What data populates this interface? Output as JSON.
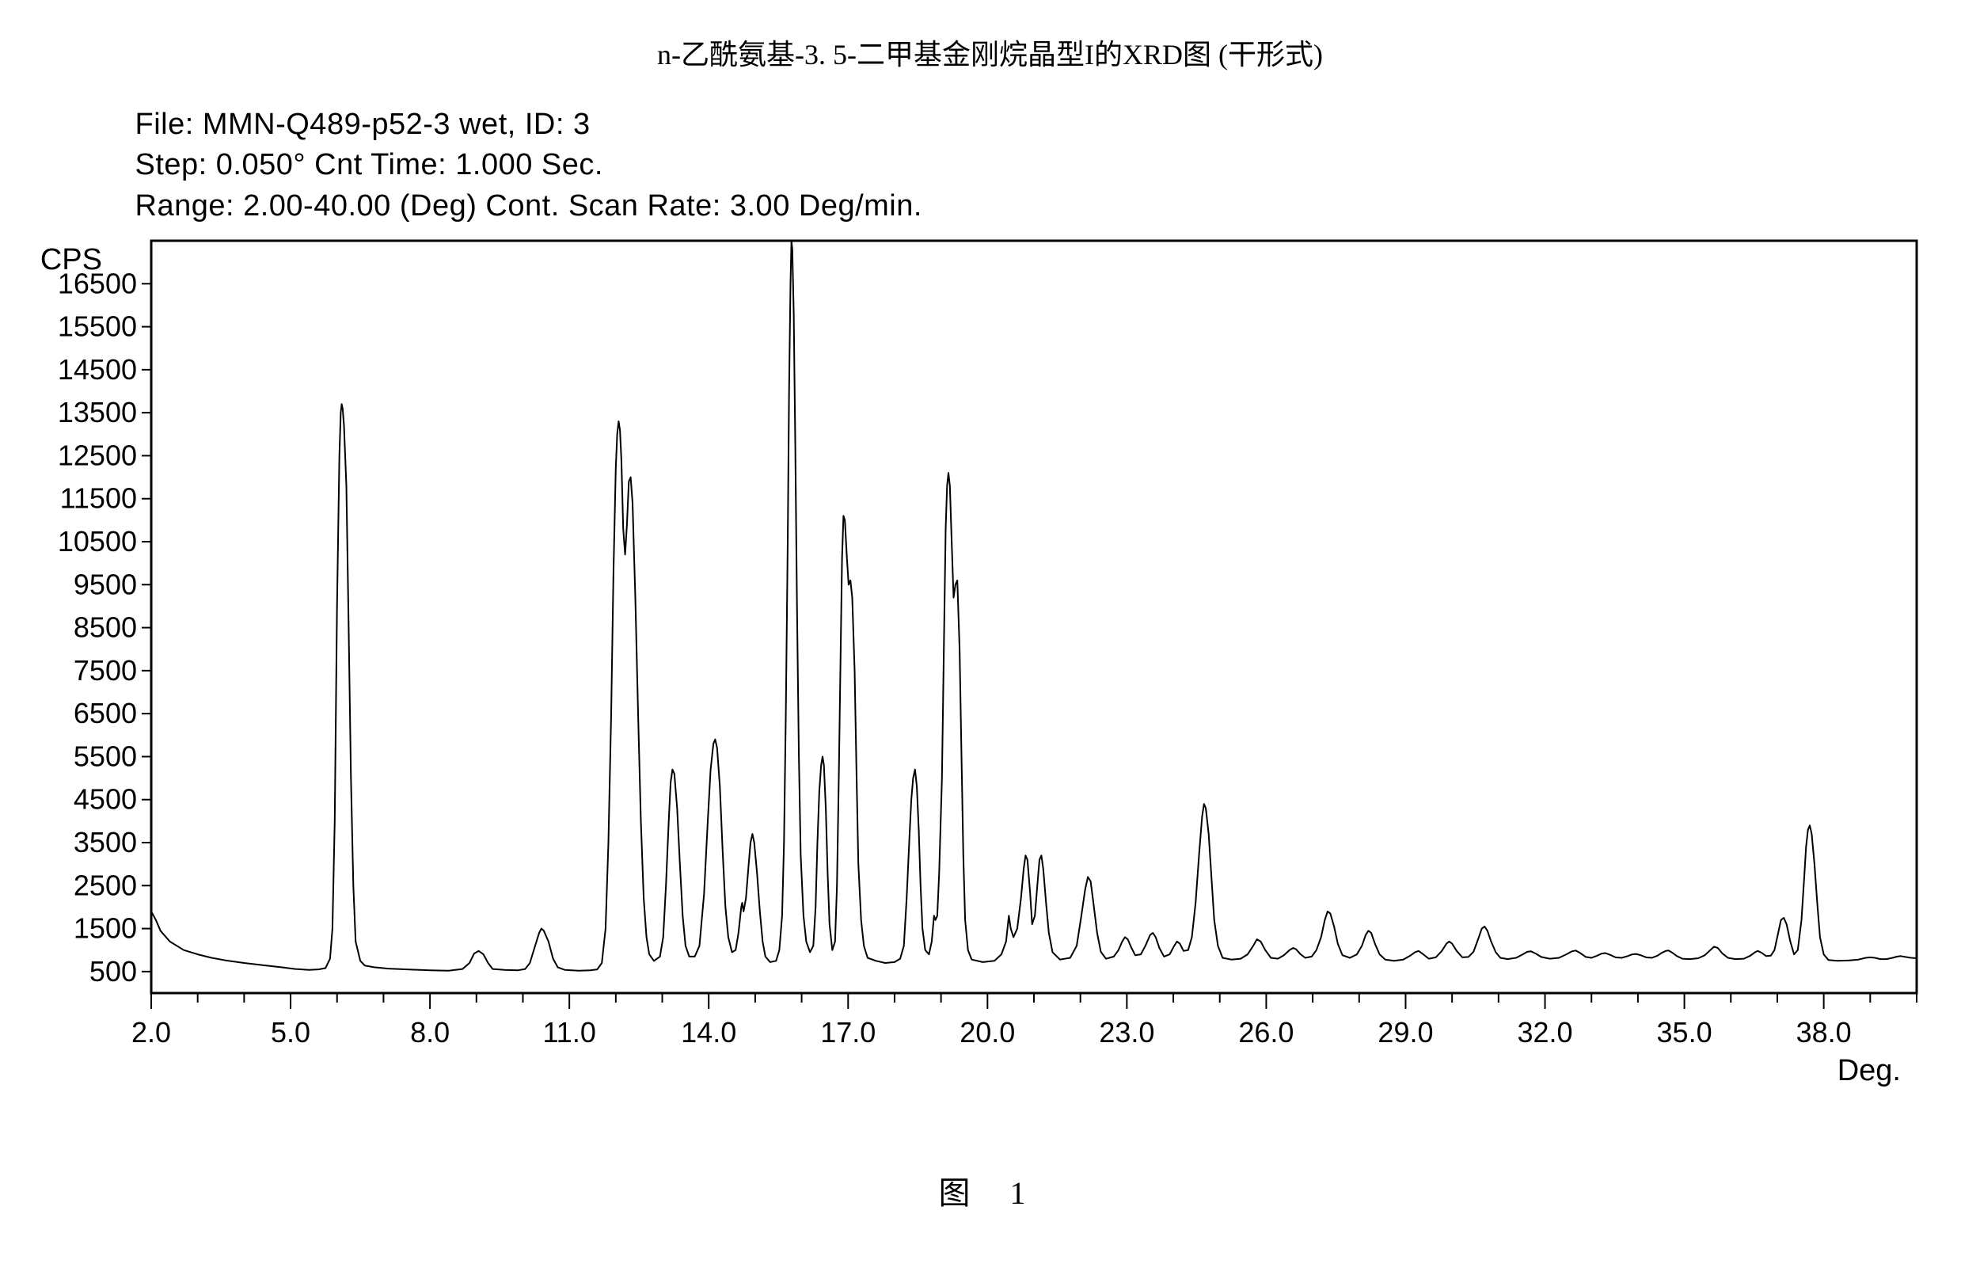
{
  "title_cn": "n-乙酰氨基-3. 5-二甲基金刚烷晶型I的XRD图 (干形式)",
  "header": {
    "line1": "File: MMN-Q489-p52-3 wet, ID: 3",
    "line2": "Step: 0.050° Cnt Time: 1.000 Sec.",
    "line3": "Range: 2.00-40.00 (Deg) Cont. Scan Rate: 3.00 Deg/min."
  },
  "chart": {
    "type": "line",
    "xlabel": "Deg.",
    "ylabel": "CPS",
    "xlim": [
      2.0,
      40.0
    ],
    "ylim": [
      0,
      17500
    ],
    "xticks": [
      2.0,
      5.0,
      8.0,
      11.0,
      14.0,
      17.0,
      20.0,
      23.0,
      26.0,
      29.0,
      32.0,
      35.0,
      38.0
    ],
    "xtick_minor_step": 1.0,
    "yticks": [
      500,
      1500,
      2500,
      3500,
      4500,
      5500,
      6500,
      7500,
      8500,
      9500,
      10500,
      11500,
      12500,
      13500,
      14500,
      15500,
      16500
    ],
    "line_color": "#000000",
    "background_color": "#ffffff",
    "border_color": "#000000",
    "line_width": 2,
    "border_width": 3,
    "label_fontsize": 36,
    "axis_fontsize": 38,
    "data": [
      [
        2.0,
        1900
      ],
      [
        2.1,
        1700
      ],
      [
        2.2,
        1450
      ],
      [
        2.4,
        1200
      ],
      [
        2.7,
        1000
      ],
      [
        3.0,
        900
      ],
      [
        3.3,
        820
      ],
      [
        3.6,
        760
      ],
      [
        4.0,
        700
      ],
      [
        4.4,
        650
      ],
      [
        4.8,
        600
      ],
      [
        5.1,
        560
      ],
      [
        5.4,
        540
      ],
      [
        5.6,
        550
      ],
      [
        5.75,
        580
      ],
      [
        5.85,
        800
      ],
      [
        5.9,
        1500
      ],
      [
        5.95,
        4000
      ],
      [
        6.0,
        9000
      ],
      [
        6.05,
        12500
      ],
      [
        6.08,
        13500
      ],
      [
        6.1,
        13700
      ],
      [
        6.12,
        13600
      ],
      [
        6.15,
        13200
      ],
      [
        6.2,
        11800
      ],
      [
        6.25,
        8500
      ],
      [
        6.3,
        5000
      ],
      [
        6.35,
        2500
      ],
      [
        6.4,
        1200
      ],
      [
        6.5,
        750
      ],
      [
        6.6,
        640
      ],
      [
        6.8,
        600
      ],
      [
        7.1,
        570
      ],
      [
        7.5,
        550
      ],
      [
        8.0,
        530
      ],
      [
        8.4,
        520
      ],
      [
        8.7,
        560
      ],
      [
        8.85,
        700
      ],
      [
        8.95,
        920
      ],
      [
        9.05,
        980
      ],
      [
        9.15,
        900
      ],
      [
        9.25,
        700
      ],
      [
        9.35,
        560
      ],
      [
        9.6,
        540
      ],
      [
        9.9,
        530
      ],
      [
        10.05,
        560
      ],
      [
        10.15,
        700
      ],
      [
        10.25,
        1050
      ],
      [
        10.35,
        1400
      ],
      [
        10.4,
        1500
      ],
      [
        10.45,
        1450
      ],
      [
        10.55,
        1200
      ],
      [
        10.65,
        800
      ],
      [
        10.75,
        600
      ],
      [
        10.9,
        540
      ],
      [
        11.2,
        520
      ],
      [
        11.45,
        530
      ],
      [
        11.6,
        550
      ],
      [
        11.7,
        700
      ],
      [
        11.78,
        1500
      ],
      [
        11.84,
        3500
      ],
      [
        11.9,
        6500
      ],
      [
        11.95,
        9800
      ],
      [
        12.0,
        12200
      ],
      [
        12.03,
        13000
      ],
      [
        12.06,
        13300
      ],
      [
        12.09,
        13100
      ],
      [
        12.12,
        12400
      ],
      [
        12.16,
        10800
      ],
      [
        12.2,
        10200
      ],
      [
        12.24,
        10900
      ],
      [
        12.28,
        11900
      ],
      [
        12.32,
        12000
      ],
      [
        12.36,
        11400
      ],
      [
        12.42,
        9200
      ],
      [
        12.48,
        6500
      ],
      [
        12.54,
        4000
      ],
      [
        12.6,
        2200
      ],
      [
        12.66,
        1300
      ],
      [
        12.72,
        900
      ],
      [
        12.82,
        750
      ],
      [
        12.95,
        850
      ],
      [
        13.02,
        1300
      ],
      [
        13.08,
        2500
      ],
      [
        13.14,
        4000
      ],
      [
        13.18,
        4900
      ],
      [
        13.22,
        5200
      ],
      [
        13.26,
        5100
      ],
      [
        13.32,
        4300
      ],
      [
        13.38,
        3000
      ],
      [
        13.44,
        1800
      ],
      [
        13.5,
        1100
      ],
      [
        13.58,
        850
      ],
      [
        13.7,
        850
      ],
      [
        13.8,
        1100
      ],
      [
        13.9,
        2300
      ],
      [
        13.98,
        4000
      ],
      [
        14.04,
        5200
      ],
      [
        14.1,
        5800
      ],
      [
        14.14,
        5900
      ],
      [
        14.18,
        5700
      ],
      [
        14.24,
        4800
      ],
      [
        14.3,
        3300
      ],
      [
        14.36,
        2000
      ],
      [
        14.42,
        1300
      ],
      [
        14.5,
        950
      ],
      [
        14.58,
        1000
      ],
      [
        14.64,
        1400
      ],
      [
        14.7,
        2000
      ],
      [
        14.72,
        2100
      ],
      [
        14.75,
        1900
      ],
      [
        14.8,
        2200
      ],
      [
        14.86,
        3000
      ],
      [
        14.9,
        3500
      ],
      [
        14.94,
        3700
      ],
      [
        14.98,
        3500
      ],
      [
        15.04,
        2800
      ],
      [
        15.1,
        1900
      ],
      [
        15.16,
        1200
      ],
      [
        15.22,
        850
      ],
      [
        15.32,
        720
      ],
      [
        15.45,
        750
      ],
      [
        15.52,
        1000
      ],
      [
        15.58,
        1800
      ],
      [
        15.62,
        3500
      ],
      [
        15.66,
        6500
      ],
      [
        15.7,
        10500
      ],
      [
        15.73,
        14000
      ],
      [
        15.76,
        16500
      ],
      [
        15.78,
        17500
      ],
      [
        15.8,
        17300
      ],
      [
        15.83,
        15800
      ],
      [
        15.86,
        13000
      ],
      [
        15.9,
        9000
      ],
      [
        15.94,
        5500
      ],
      [
        15.98,
        3200
      ],
      [
        16.04,
        1800
      ],
      [
        16.1,
        1200
      ],
      [
        16.18,
        950
      ],
      [
        16.25,
        1100
      ],
      [
        16.3,
        2000
      ],
      [
        16.34,
        3500
      ],
      [
        16.38,
        4700
      ],
      [
        16.42,
        5300
      ],
      [
        16.45,
        5500
      ],
      [
        16.48,
        5300
      ],
      [
        16.52,
        4300
      ],
      [
        16.56,
        2800
      ],
      [
        16.6,
        1600
      ],
      [
        16.66,
        1000
      ],
      [
        16.72,
        1200
      ],
      [
        16.76,
        2500
      ],
      [
        16.8,
        5000
      ],
      [
        16.84,
        8000
      ],
      [
        16.87,
        10100
      ],
      [
        16.9,
        11100
      ],
      [
        16.93,
        11000
      ],
      [
        16.97,
        10200
      ],
      [
        17.01,
        9500
      ],
      [
        17.05,
        9600
      ],
      [
        17.09,
        9200
      ],
      [
        17.14,
        7500
      ],
      [
        17.18,
        5200
      ],
      [
        17.22,
        3000
      ],
      [
        17.28,
        1700
      ],
      [
        17.34,
        1100
      ],
      [
        17.42,
        820
      ],
      [
        17.6,
        750
      ],
      [
        17.8,
        700
      ],
      [
        18.0,
        720
      ],
      [
        18.12,
        800
      ],
      [
        18.2,
        1100
      ],
      [
        18.26,
        2200
      ],
      [
        18.32,
        3600
      ],
      [
        18.36,
        4500
      ],
      [
        18.4,
        5000
      ],
      [
        18.44,
        5200
      ],
      [
        18.48,
        4800
      ],
      [
        18.52,
        3800
      ],
      [
        18.56,
        2500
      ],
      [
        18.6,
        1500
      ],
      [
        18.66,
        1000
      ],
      [
        18.74,
        900
      ],
      [
        18.8,
        1200
      ],
      [
        18.85,
        1800
      ],
      [
        18.88,
        1700
      ],
      [
        18.92,
        1800
      ],
      [
        18.96,
        2800
      ],
      [
        19.02,
        5000
      ],
      [
        19.06,
        8000
      ],
      [
        19.1,
        10800
      ],
      [
        19.13,
        11800
      ],
      [
        19.16,
        12100
      ],
      [
        19.19,
        11800
      ],
      [
        19.23,
        10500
      ],
      [
        19.27,
        9200
      ],
      [
        19.31,
        9500
      ],
      [
        19.35,
        9600
      ],
      [
        19.4,
        8000
      ],
      [
        19.44,
        5500
      ],
      [
        19.48,
        3200
      ],
      [
        19.52,
        1700
      ],
      [
        19.58,
        1000
      ],
      [
        19.66,
        780
      ],
      [
        19.9,
        720
      ],
      [
        20.15,
        750
      ],
      [
        20.3,
        900
      ],
      [
        20.4,
        1200
      ],
      [
        20.46,
        1800
      ],
      [
        20.5,
        1500
      ],
      [
        20.56,
        1300
      ],
      [
        20.64,
        1500
      ],
      [
        20.72,
        2200
      ],
      [
        20.78,
        2900
      ],
      [
        20.82,
        3200
      ],
      [
        20.86,
        3100
      ],
      [
        20.92,
        2300
      ],
      [
        20.96,
        1600
      ],
      [
        21.02,
        1800
      ],
      [
        21.08,
        2600
      ],
      [
        21.12,
        3100
      ],
      [
        21.16,
        3200
      ],
      [
        21.2,
        2900
      ],
      [
        21.26,
        2100
      ],
      [
        21.32,
        1400
      ],
      [
        21.4,
        950
      ],
      [
        21.56,
        780
      ],
      [
        21.78,
        820
      ],
      [
        21.92,
        1100
      ],
      [
        22.02,
        1800
      ],
      [
        22.1,
        2400
      ],
      [
        22.16,
        2700
      ],
      [
        22.22,
        2600
      ],
      [
        22.28,
        2100
      ],
      [
        22.36,
        1400
      ],
      [
        22.44,
        960
      ],
      [
        22.55,
        800
      ],
      [
        22.72,
        850
      ],
      [
        22.82,
        1000
      ],
      [
        22.9,
        1200
      ],
      [
        22.96,
        1300
      ],
      [
        23.02,
        1250
      ],
      [
        23.1,
        1050
      ],
      [
        23.18,
        880
      ],
      [
        23.3,
        900
      ],
      [
        23.4,
        1100
      ],
      [
        23.5,
        1350
      ],
      [
        23.56,
        1400
      ],
      [
        23.62,
        1300
      ],
      [
        23.7,
        1050
      ],
      [
        23.8,
        850
      ],
      [
        23.92,
        900
      ],
      [
        24.02,
        1100
      ],
      [
        24.08,
        1200
      ],
      [
        24.14,
        1150
      ],
      [
        24.22,
        980
      ],
      [
        24.32,
        1000
      ],
      [
        24.4,
        1300
      ],
      [
        24.48,
        2100
      ],
      [
        24.56,
        3300
      ],
      [
        24.62,
        4100
      ],
      [
        24.66,
        4400
      ],
      [
        24.7,
        4300
      ],
      [
        24.76,
        3700
      ],
      [
        24.82,
        2700
      ],
      [
        24.88,
        1700
      ],
      [
        24.96,
        1100
      ],
      [
        25.06,
        820
      ],
      [
        25.25,
        780
      ],
      [
        25.45,
        800
      ],
      [
        25.6,
        900
      ],
      [
        25.72,
        1100
      ],
      [
        25.8,
        1250
      ],
      [
        25.88,
        1200
      ],
      [
        25.98,
        1000
      ],
      [
        26.1,
        820
      ],
      [
        26.25,
        800
      ],
      [
        26.38,
        880
      ],
      [
        26.5,
        1000
      ],
      [
        26.58,
        1050
      ],
      [
        26.64,
        1020
      ],
      [
        26.74,
        900
      ],
      [
        26.84,
        820
      ],
      [
        26.98,
        850
      ],
      [
        27.08,
        1000
      ],
      [
        27.18,
        1300
      ],
      [
        27.26,
        1700
      ],
      [
        27.32,
        1900
      ],
      [
        27.38,
        1850
      ],
      [
        27.46,
        1550
      ],
      [
        27.54,
        1150
      ],
      [
        27.64,
        880
      ],
      [
        27.8,
        820
      ],
      [
        27.95,
        900
      ],
      [
        28.06,
        1100
      ],
      [
        28.14,
        1350
      ],
      [
        28.2,
        1450
      ],
      [
        28.26,
        1400
      ],
      [
        28.34,
        1150
      ],
      [
        28.44,
        900
      ],
      [
        28.56,
        780
      ],
      [
        28.75,
        750
      ],
      [
        28.95,
        780
      ],
      [
        29.1,
        870
      ],
      [
        29.2,
        950
      ],
      [
        29.28,
        980
      ],
      [
        29.38,
        900
      ],
      [
        29.5,
        800
      ],
      [
        29.65,
        830
      ],
      [
        29.78,
        980
      ],
      [
        29.88,
        1150
      ],
      [
        29.94,
        1200
      ],
      [
        30.0,
        1150
      ],
      [
        30.1,
        980
      ],
      [
        30.22,
        830
      ],
      [
        30.35,
        840
      ],
      [
        30.46,
        960
      ],
      [
        30.56,
        1250
      ],
      [
        30.64,
        1500
      ],
      [
        30.7,
        1550
      ],
      [
        30.76,
        1450
      ],
      [
        30.84,
        1200
      ],
      [
        30.94,
        950
      ],
      [
        31.04,
        820
      ],
      [
        31.2,
        790
      ],
      [
        31.38,
        820
      ],
      [
        31.52,
        900
      ],
      [
        31.62,
        960
      ],
      [
        31.7,
        970
      ],
      [
        31.8,
        920
      ],
      [
        31.92,
        840
      ],
      [
        32.1,
        800
      ],
      [
        32.3,
        820
      ],
      [
        32.46,
        900
      ],
      [
        32.58,
        970
      ],
      [
        32.66,
        990
      ],
      [
        32.76,
        930
      ],
      [
        32.88,
        840
      ],
      [
        33.0,
        820
      ],
      [
        33.12,
        870
      ],
      [
        33.22,
        920
      ],
      [
        33.3,
        930
      ],
      [
        33.4,
        890
      ],
      [
        33.52,
        830
      ],
      [
        33.65,
        820
      ],
      [
        33.78,
        860
      ],
      [
        33.88,
        900
      ],
      [
        33.96,
        910
      ],
      [
        34.06,
        880
      ],
      [
        34.18,
        830
      ],
      [
        34.3,
        820
      ],
      [
        34.42,
        870
      ],
      [
        34.52,
        940
      ],
      [
        34.6,
        980
      ],
      [
        34.66,
        990
      ],
      [
        34.74,
        940
      ],
      [
        34.84,
        860
      ],
      [
        34.96,
        800
      ],
      [
        35.12,
        790
      ],
      [
        35.3,
        810
      ],
      [
        35.44,
        880
      ],
      [
        35.56,
        1000
      ],
      [
        35.64,
        1080
      ],
      [
        35.72,
        1050
      ],
      [
        35.82,
        920
      ],
      [
        35.94,
        820
      ],
      [
        36.1,
        790
      ],
      [
        36.28,
        800
      ],
      [
        36.42,
        870
      ],
      [
        36.52,
        950
      ],
      [
        36.58,
        980
      ],
      [
        36.66,
        940
      ],
      [
        36.76,
        860
      ],
      [
        36.86,
        870
      ],
      [
        36.94,
        1000
      ],
      [
        37.02,
        1400
      ],
      [
        37.08,
        1700
      ],
      [
        37.14,
        1750
      ],
      [
        37.2,
        1600
      ],
      [
        37.28,
        1200
      ],
      [
        37.36,
        900
      ],
      [
        37.44,
        1000
      ],
      [
        37.52,
        1700
      ],
      [
        37.58,
        2700
      ],
      [
        37.62,
        3400
      ],
      [
        37.66,
        3800
      ],
      [
        37.7,
        3900
      ],
      [
        37.74,
        3700
      ],
      [
        37.8,
        3000
      ],
      [
        37.86,
        2100
      ],
      [
        37.92,
        1300
      ],
      [
        38.0,
        900
      ],
      [
        38.1,
        770
      ],
      [
        38.3,
        750
      ],
      [
        38.55,
        760
      ],
      [
        38.75,
        780
      ],
      [
        38.9,
        820
      ],
      [
        39.0,
        830
      ],
      [
        39.1,
        820
      ],
      [
        39.22,
        790
      ],
      [
        39.35,
        790
      ],
      [
        39.48,
        820
      ],
      [
        39.58,
        850
      ],
      [
        39.66,
        860
      ],
      [
        39.76,
        840
      ],
      [
        39.88,
        820
      ],
      [
        40.0,
        810
      ]
    ]
  },
  "figure_label": "图 1"
}
